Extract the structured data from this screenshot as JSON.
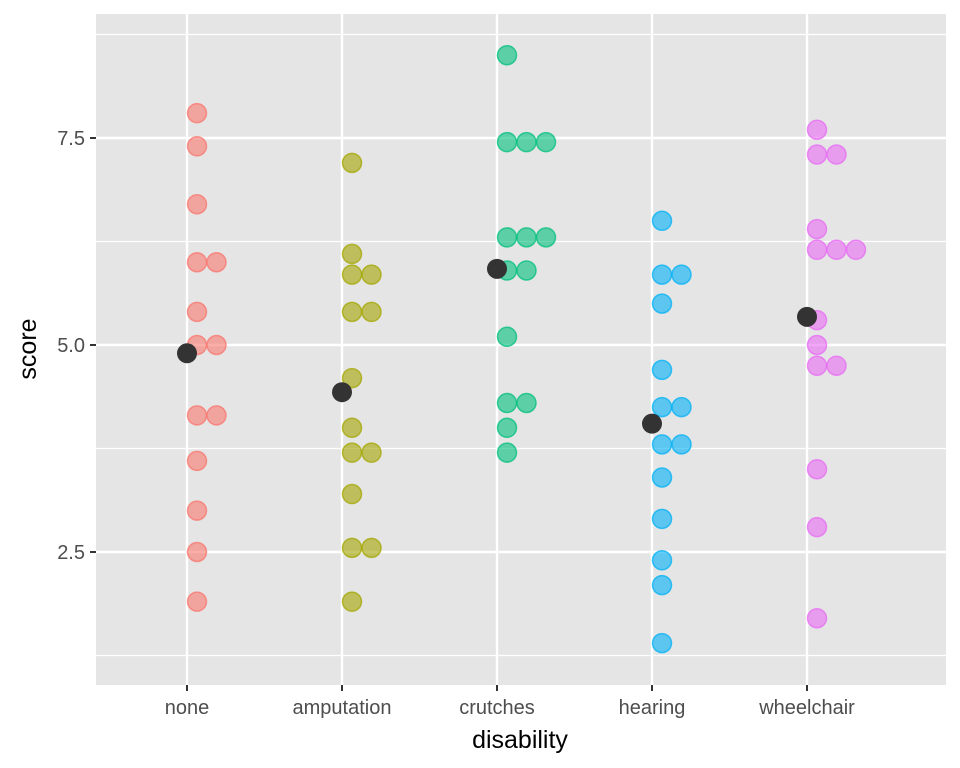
{
  "chart_data": {
    "type": "scatter",
    "xlabel": "disability",
    "ylabel": "score",
    "categories": [
      "none",
      "amputation",
      "crutches",
      "hearing",
      "wheelchair"
    ],
    "yticks": [
      2.5,
      5.0,
      7.5
    ],
    "ytick_labels": [
      "2.5",
      "5.0",
      "7.5"
    ],
    "ylim": [
      0.9,
      8.9
    ],
    "grid": true,
    "legend": "none",
    "background": "#e5e5e5",
    "series": [
      {
        "category": "none",
        "color": "#f8766d",
        "points": [
          1.9,
          2.5,
          3.0,
          3.6,
          4.15,
          4.15,
          5.0,
          5.0,
          5.4,
          6.0,
          6.0,
          6.7,
          7.4,
          7.8
        ]
      },
      {
        "category": "amputation",
        "color": "#a3a500",
        "points": [
          1.9,
          2.55,
          2.55,
          3.2,
          3.7,
          3.7,
          4.0,
          4.6,
          5.4,
          5.4,
          5.85,
          5.85,
          6.1,
          7.2
        ]
      },
      {
        "category": "crutches",
        "color": "#00bf7d",
        "points": [
          3.7,
          4.0,
          4.3,
          4.3,
          5.1,
          5.9,
          5.9,
          6.3,
          6.3,
          6.3,
          7.45,
          7.45,
          7.45,
          8.5
        ]
      },
      {
        "category": "hearing",
        "color": "#00b0f6",
        "points": [
          1.4,
          2.1,
          2.4,
          2.9,
          3.4,
          3.8,
          3.8,
          4.25,
          4.25,
          4.7,
          5.5,
          5.85,
          5.85,
          6.5
        ]
      },
      {
        "category": "wheelchair",
        "color": "#e76bf3",
        "points": [
          1.7,
          2.8,
          3.5,
          4.75,
          4.75,
          5.0,
          5.3,
          6.15,
          6.15,
          6.15,
          6.4,
          7.3,
          7.3,
          7.6
        ]
      }
    ],
    "means": {
      "color": "#333333",
      "values": [
        4.9,
        4.43,
        5.92,
        4.05,
        5.34
      ]
    }
  }
}
